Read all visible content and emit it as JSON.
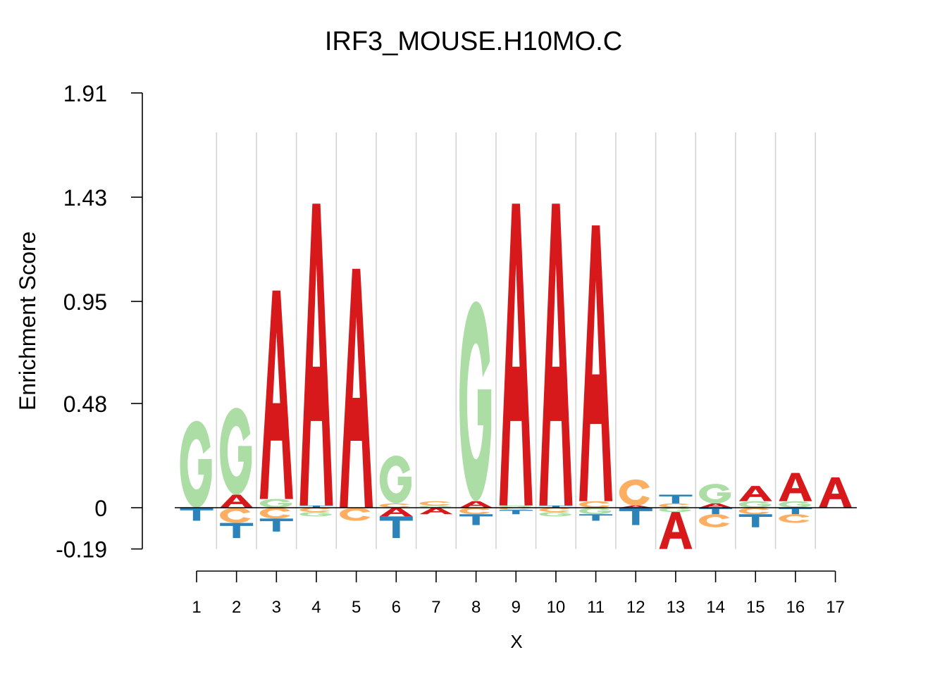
{
  "chart_data": {
    "type": "sequence-logo",
    "title": "IRF3_MOUSE.H10MO.C",
    "xlabel": "X",
    "ylabel": "Enrichment Score",
    "y_ticks": [
      "1.91",
      "1.43",
      "0.95",
      "0.48",
      "0",
      "-0.19"
    ],
    "y_tick_values": [
      1.91,
      1.43,
      0.95,
      0.48,
      0,
      -0.19
    ],
    "ylim": [
      -0.19,
      1.91
    ],
    "x_ticks": [
      "1",
      "2",
      "3",
      "4",
      "5",
      "6",
      "7",
      "8",
      "9",
      "10",
      "11",
      "12",
      "13",
      "14",
      "15",
      "16",
      "17"
    ],
    "grid": true,
    "colors": {
      "A": "#d7191c",
      "C": "#fdae61",
      "G": "#abdda4",
      "T": "#2b83ba"
    },
    "positions": [
      {
        "pos": 1,
        "pos_stack": [
          {
            "l": "G",
            "v": 0.4
          }
        ],
        "neg_stack": [
          {
            "l": "T",
            "v": 0.06
          }
        ]
      },
      {
        "pos": 2,
        "pos_stack": [
          {
            "l": "A",
            "v": 0.06
          },
          {
            "l": "G",
            "v": 0.4
          }
        ],
        "neg_stack": [
          {
            "l": "C",
            "v": 0.07
          },
          {
            "l": "T",
            "v": 0.07
          }
        ]
      },
      {
        "pos": 3,
        "pos_stack": [
          {
            "l": "G",
            "v": 0.04
          },
          {
            "l": "A",
            "v": 0.96
          }
        ],
        "neg_stack": [
          {
            "l": "C",
            "v": 0.05
          },
          {
            "l": "T",
            "v": 0.06
          }
        ]
      },
      {
        "pos": 4,
        "pos_stack": [
          {
            "l": "T",
            "v": 0.01
          },
          {
            "l": "A",
            "v": 1.39
          }
        ],
        "neg_stack": [
          {
            "l": "C",
            "v": 0.02
          },
          {
            "l": "G",
            "v": 0.02
          }
        ]
      },
      {
        "pos": 5,
        "pos_stack": [
          {
            "l": "A",
            "v": 1.1
          }
        ],
        "neg_stack": [
          {
            "l": "C",
            "v": 0.06
          }
        ]
      },
      {
        "pos": 6,
        "pos_stack": [
          {
            "l": "C",
            "v": 0.02
          },
          {
            "l": "G",
            "v": 0.22
          }
        ],
        "neg_stack": [
          {
            "l": "A",
            "v": 0.04
          },
          {
            "l": "T",
            "v": 0.1
          }
        ]
      },
      {
        "pos": 7,
        "pos_stack": [
          {
            "l": "G",
            "v": 0.01
          },
          {
            "l": "C",
            "v": 0.02
          }
        ],
        "neg_stack": [
          {
            "l": "A",
            "v": 0.03
          }
        ]
      },
      {
        "pos": 8,
        "pos_stack": [
          {
            "l": "A",
            "v": 0.03
          },
          {
            "l": "G",
            "v": 0.92
          }
        ],
        "neg_stack": [
          {
            "l": "C",
            "v": 0.03
          },
          {
            "l": "T",
            "v": 0.05
          }
        ]
      },
      {
        "pos": 9,
        "pos_stack": [
          {
            "l": "G",
            "v": 0.01
          },
          {
            "l": "A",
            "v": 1.39
          }
        ],
        "neg_stack": [
          {
            "l": "C",
            "v": 0.01
          },
          {
            "l": "T",
            "v": 0.02
          }
        ]
      },
      {
        "pos": 10,
        "pos_stack": [
          {
            "l": "T",
            "v": 0.01
          },
          {
            "l": "A",
            "v": 1.39
          }
        ],
        "neg_stack": [
          {
            "l": "C",
            "v": 0.02
          },
          {
            "l": "G",
            "v": 0.02
          }
        ]
      },
      {
        "pos": 11,
        "pos_stack": [
          {
            "l": "C",
            "v": 0.03
          },
          {
            "l": "A",
            "v": 1.27
          }
        ],
        "neg_stack": [
          {
            "l": "G",
            "v": 0.03
          },
          {
            "l": "T",
            "v": 0.03
          }
        ]
      },
      {
        "pos": 12,
        "pos_stack": [
          {
            "l": "A",
            "v": 0.01
          },
          {
            "l": "C",
            "v": 0.12
          }
        ],
        "neg_stack": [
          {
            "l": "T",
            "v": 0.08
          }
        ]
      },
      {
        "pos": 13,
        "pos_stack": [
          {
            "l": "C",
            "v": 0.02
          },
          {
            "l": "T",
            "v": 0.04
          }
        ],
        "neg_stack": [
          {
            "l": "G",
            "v": 0.02
          },
          {
            "l": "A",
            "v": 0.17
          }
        ]
      },
      {
        "pos": 14,
        "pos_stack": [
          {
            "l": "A",
            "v": 0.02
          },
          {
            "l": "G",
            "v": 0.09
          }
        ],
        "neg_stack": [
          {
            "l": "T",
            "v": 0.03
          },
          {
            "l": "C",
            "v": 0.06
          }
        ]
      },
      {
        "pos": 15,
        "pos_stack": [
          {
            "l": "G",
            "v": 0.03
          },
          {
            "l": "A",
            "v": 0.07
          }
        ],
        "neg_stack": [
          {
            "l": "C",
            "v": 0.03
          },
          {
            "l": "T",
            "v": 0.06
          }
        ]
      },
      {
        "pos": 16,
        "pos_stack": [
          {
            "l": "G",
            "v": 0.03
          },
          {
            "l": "A",
            "v": 0.13
          }
        ],
        "neg_stack": [
          {
            "l": "T",
            "v": 0.03
          },
          {
            "l": "C",
            "v": 0.04
          }
        ]
      },
      {
        "pos": 17,
        "pos_stack": [
          {
            "l": "A",
            "v": 0.14
          }
        ],
        "neg_stack": []
      }
    ]
  }
}
